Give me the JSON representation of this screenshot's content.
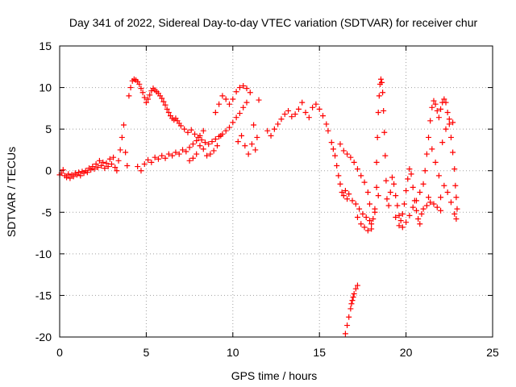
{
  "chart_data": {
    "type": "scatter",
    "title": "Day 341 of 2022, Sidereal Day-to-day VTEC variation (SDTVAR) for receiver chur",
    "xlabel": "GPS time / hours",
    "ylabel": "SDTVAR / TECUs",
    "xlim": [
      0,
      25
    ],
    "ylim": [
      -20,
      15
    ],
    "x_ticks": [
      0,
      5,
      10,
      15,
      20,
      25
    ],
    "y_ticks": [
      -20,
      -15,
      -10,
      -5,
      0,
      5,
      10,
      15
    ],
    "x_tick_labels": [
      "0",
      "5",
      "10",
      "15",
      "20",
      "25"
    ],
    "y_tick_labels": [
      "-20",
      "-15",
      "-10",
      "-5",
      "0",
      "5",
      "10",
      "15"
    ],
    "grid": true,
    "marker": "+",
    "series": [
      {
        "name": "SDTVAR",
        "color": "#ff0000",
        "points": [
          [
            0.0,
            -0.5
          ],
          [
            0.1,
            -0.3
          ],
          [
            0.2,
            0.1
          ],
          [
            0.3,
            -0.6
          ],
          [
            0.4,
            -0.8
          ],
          [
            0.5,
            -0.4
          ],
          [
            0.6,
            -0.9
          ],
          [
            0.7,
            -0.5
          ],
          [
            0.8,
            -0.7
          ],
          [
            0.9,
            -0.3
          ],
          [
            1.0,
            -0.5
          ],
          [
            1.1,
            -0.2
          ],
          [
            1.2,
            -0.6
          ],
          [
            1.3,
            -0.1
          ],
          [
            1.4,
            -0.3
          ],
          [
            1.5,
            0.0
          ],
          [
            1.6,
            -0.2
          ],
          [
            1.7,
            0.3
          ],
          [
            1.8,
            0.1
          ],
          [
            1.9,
            0.5
          ],
          [
            2.0,
            0.2
          ],
          [
            2.1,
            0.8
          ],
          [
            2.2,
            0.4
          ],
          [
            2.3,
            1.2
          ],
          [
            2.4,
            0.6
          ],
          [
            2.5,
            1.0
          ],
          [
            2.6,
            0.3
          ],
          [
            2.7,
            0.9
          ],
          [
            2.8,
            0.5
          ],
          [
            2.9,
            1.4
          ],
          [
            3.0,
            0.8
          ],
          [
            3.1,
            1.6
          ],
          [
            3.2,
            0.4
          ],
          [
            3.3,
            0.0
          ],
          [
            3.4,
            1.2
          ],
          [
            3.5,
            2.5
          ],
          [
            3.6,
            4.0
          ],
          [
            3.7,
            5.5
          ],
          [
            3.8,
            2.2
          ],
          [
            3.9,
            0.6
          ],
          [
            4.0,
            9.0
          ],
          [
            4.1,
            10.0
          ],
          [
            4.2,
            10.8
          ],
          [
            4.3,
            11.0
          ],
          [
            4.4,
            10.9
          ],
          [
            4.5,
            10.7
          ],
          [
            4.6,
            10.4
          ],
          [
            4.7,
            9.9
          ],
          [
            4.8,
            9.4
          ],
          [
            4.9,
            8.8
          ],
          [
            5.0,
            8.2
          ],
          [
            5.1,
            8.6
          ],
          [
            5.2,
            9.1
          ],
          [
            5.3,
            9.6
          ],
          [
            5.4,
            9.9
          ],
          [
            5.5,
            9.7
          ],
          [
            5.6,
            9.5
          ],
          [
            5.7,
            9.3
          ],
          [
            5.8,
            9.0
          ],
          [
            5.9,
            8.7
          ],
          [
            6.0,
            8.3
          ],
          [
            6.1,
            7.9
          ],
          [
            6.2,
            7.4
          ],
          [
            6.3,
            7.0
          ],
          [
            6.4,
            6.6
          ],
          [
            6.5,
            6.3
          ],
          [
            6.6,
            6.1
          ],
          [
            6.7,
            6.3
          ],
          [
            6.8,
            6.0
          ],
          [
            6.9,
            5.7
          ],
          [
            4.5,
            0.5
          ],
          [
            4.7,
            0.0
          ],
          [
            4.9,
            0.8
          ],
          [
            5.1,
            1.3
          ],
          [
            5.3,
            1.0
          ],
          [
            5.5,
            1.6
          ],
          [
            5.7,
            1.4
          ],
          [
            5.9,
            1.8
          ],
          [
            6.1,
            1.5
          ],
          [
            6.3,
            2.0
          ],
          [
            6.5,
            1.8
          ],
          [
            6.7,
            2.2
          ],
          [
            6.9,
            2.0
          ],
          [
            7.1,
            2.5
          ],
          [
            7.3,
            2.3
          ],
          [
            7.5,
            2.8
          ],
          [
            7.7,
            3.2
          ],
          [
            7.9,
            3.6
          ],
          [
            8.1,
            4.2
          ],
          [
            8.3,
            4.8
          ],
          [
            7.0,
            5.4
          ],
          [
            7.2,
            5.0
          ],
          [
            7.4,
            4.6
          ],
          [
            7.6,
            4.9
          ],
          [
            7.8,
            4.4
          ],
          [
            8.0,
            4.0
          ],
          [
            8.2,
            3.7
          ],
          [
            8.4,
            3.4
          ],
          [
            8.6,
            3.2
          ],
          [
            8.8,
            3.5
          ],
          [
            9.0,
            3.8
          ],
          [
            9.2,
            4.1
          ],
          [
            9.4,
            4.4
          ],
          [
            9.6,
            4.8
          ],
          [
            9.8,
            5.2
          ],
          [
            10.0,
            5.8
          ],
          [
            10.2,
            6.4
          ],
          [
            10.4,
            6.9
          ],
          [
            10.6,
            7.6
          ],
          [
            10.8,
            8.2
          ],
          [
            9.0,
            7.0
          ],
          [
            9.2,
            8.0
          ],
          [
            9.4,
            9.0
          ],
          [
            9.6,
            8.6
          ],
          [
            9.8,
            8.0
          ],
          [
            10.0,
            8.6
          ],
          [
            10.2,
            9.5
          ],
          [
            10.4,
            10.0
          ],
          [
            10.6,
            10.2
          ],
          [
            10.8,
            9.9
          ],
          [
            11.0,
            9.4
          ],
          [
            11.2,
            5.5
          ],
          [
            11.4,
            4.0
          ],
          [
            11.5,
            8.5
          ],
          [
            11.3,
            2.5
          ],
          [
            11.1,
            3.2
          ],
          [
            10.9,
            2.0
          ],
          [
            10.7,
            3.0
          ],
          [
            10.5,
            4.2
          ],
          [
            10.3,
            3.5
          ],
          [
            9.3,
            4.2
          ],
          [
            9.1,
            3.0
          ],
          [
            8.9,
            2.4
          ],
          [
            8.7,
            2.0
          ],
          [
            8.5,
            1.8
          ],
          [
            8.3,
            2.6
          ],
          [
            8.1,
            3.0
          ],
          [
            7.9,
            2.0
          ],
          [
            7.7,
            1.5
          ],
          [
            7.5,
            1.2
          ],
          [
            12.0,
            4.8
          ],
          [
            12.2,
            4.2
          ],
          [
            12.4,
            5.0
          ],
          [
            12.6,
            5.6
          ],
          [
            12.8,
            6.2
          ],
          [
            13.0,
            6.8
          ],
          [
            13.2,
            7.2
          ],
          [
            13.4,
            6.5
          ],
          [
            13.6,
            6.8
          ],
          [
            13.8,
            7.4
          ],
          [
            14.0,
            8.2
          ],
          [
            14.2,
            7.0
          ],
          [
            14.4,
            6.4
          ],
          [
            14.6,
            7.6
          ],
          [
            14.8,
            8.0
          ],
          [
            15.0,
            7.4
          ],
          [
            15.2,
            6.6
          ],
          [
            15.4,
            5.6
          ],
          [
            15.5,
            4.8
          ],
          [
            15.7,
            3.4
          ],
          [
            15.8,
            2.6
          ],
          [
            15.9,
            1.8
          ],
          [
            16.0,
            0.6
          ],
          [
            16.1,
            -0.6
          ],
          [
            16.2,
            -1.6
          ],
          [
            16.3,
            -2.6
          ],
          [
            16.4,
            -3.0
          ],
          [
            16.5,
            -2.4
          ],
          [
            16.6,
            -3.4
          ],
          [
            16.7,
            -2.8
          ],
          [
            16.2,
            3.2
          ],
          [
            16.4,
            2.4
          ],
          [
            16.6,
            2.0
          ],
          [
            16.8,
            1.6
          ],
          [
            17.0,
            1.0
          ],
          [
            17.2,
            0.2
          ],
          [
            17.4,
            -0.6
          ],
          [
            17.6,
            -1.4
          ],
          [
            17.8,
            -2.6
          ],
          [
            17.9,
            -4.0
          ],
          [
            16.9,
            -3.6
          ],
          [
            17.1,
            -4.0
          ],
          [
            17.3,
            -4.6
          ],
          [
            17.5,
            -5.2
          ],
          [
            17.7,
            -5.6
          ],
          [
            17.9,
            -6.0
          ],
          [
            18.0,
            -6.4
          ],
          [
            18.1,
            -5.8
          ],
          [
            18.2,
            -4.6
          ],
          [
            18.3,
            -2.0
          ],
          [
            17.2,
            -5.6
          ],
          [
            17.4,
            -6.4
          ],
          [
            17.6,
            -6.8
          ],
          [
            17.8,
            -7.2
          ],
          [
            18.0,
            -7.0
          ],
          [
            18.2,
            -5.0
          ],
          [
            18.4,
            -3.0
          ],
          [
            18.3,
            1.0
          ],
          [
            18.35,
            4.0
          ],
          [
            18.4,
            7.0
          ],
          [
            18.45,
            9.0
          ],
          [
            18.5,
            10.4
          ],
          [
            18.55,
            11.0
          ],
          [
            18.6,
            10.6
          ],
          [
            18.65,
            9.4
          ],
          [
            18.7,
            7.2
          ],
          [
            18.75,
            4.6
          ],
          [
            18.8,
            1.8
          ],
          [
            18.85,
            -1.2
          ],
          [
            18.9,
            -3.4
          ],
          [
            19.0,
            -4.2
          ],
          [
            19.1,
            -2.6
          ],
          [
            19.2,
            -0.8
          ],
          [
            19.3,
            -1.6
          ],
          [
            19.4,
            -3.0
          ],
          [
            19.5,
            -4.2
          ],
          [
            19.6,
            -5.4
          ],
          [
            19.7,
            -6.0
          ],
          [
            19.8,
            -5.2
          ],
          [
            19.9,
            -4.0
          ],
          [
            20.0,
            -2.4
          ],
          [
            20.1,
            -1.0
          ],
          [
            20.2,
            0.2
          ],
          [
            20.3,
            -0.4
          ],
          [
            20.4,
            -2.0
          ],
          [
            20.5,
            -3.6
          ],
          [
            20.6,
            -4.8
          ],
          [
            20.7,
            -5.8
          ],
          [
            20.8,
            -6.4
          ],
          [
            20.9,
            -5.2
          ],
          [
            19.4,
            -5.6
          ],
          [
            19.6,
            -6.6
          ],
          [
            19.8,
            -6.8
          ],
          [
            20.0,
            -6.2
          ],
          [
            20.2,
            -5.4
          ],
          [
            20.4,
            -4.4
          ],
          [
            20.6,
            -3.6
          ],
          [
            20.8,
            -2.6
          ],
          [
            21.0,
            -1.6
          ],
          [
            21.1,
            0.0
          ],
          [
            21.2,
            2.0
          ],
          [
            21.3,
            4.0
          ],
          [
            21.4,
            6.0
          ],
          [
            21.5,
            7.6
          ],
          [
            21.6,
            8.4
          ],
          [
            21.7,
            8.0
          ],
          [
            21.8,
            7.2
          ],
          [
            21.9,
            6.4
          ],
          [
            22.0,
            7.4
          ],
          [
            22.1,
            8.2
          ],
          [
            22.2,
            8.6
          ],
          [
            22.3,
            8.2
          ],
          [
            22.4,
            7.0
          ],
          [
            22.5,
            5.6
          ],
          [
            22.6,
            4.0
          ],
          [
            22.7,
            2.2
          ],
          [
            22.8,
            0.2
          ],
          [
            22.85,
            -1.8
          ],
          [
            22.9,
            -3.2
          ],
          [
            22.95,
            -4.6
          ],
          [
            21.0,
            -4.6
          ],
          [
            21.2,
            -4.2
          ],
          [
            21.4,
            -3.8
          ],
          [
            21.6,
            -4.0
          ],
          [
            21.8,
            -4.4
          ],
          [
            22.0,
            -3.2
          ],
          [
            22.2,
            -1.8
          ],
          [
            22.4,
            -2.6
          ],
          [
            22.6,
            -3.8
          ],
          [
            22.8,
            -5.2
          ],
          [
            21.5,
            2.6
          ],
          [
            21.7,
            1.0
          ],
          [
            21.9,
            -0.6
          ],
          [
            22.1,
            3.4
          ],
          [
            22.3,
            5.0
          ],
          [
            22.5,
            6.2
          ],
          [
            22.7,
            5.8
          ],
          [
            22.9,
            -5.8
          ],
          [
            22.0,
            -4.8
          ],
          [
            21.3,
            -3.2
          ],
          [
            16.5,
            -19.6
          ],
          [
            16.6,
            -18.6
          ],
          [
            16.7,
            -17.6
          ],
          [
            16.8,
            -16.6
          ],
          [
            16.9,
            -15.6
          ],
          [
            17.0,
            -14.8
          ],
          [
            17.1,
            -14.2
          ],
          [
            17.2,
            -13.8
          ],
          [
            16.85,
            -16.0
          ],
          [
            16.95,
            -15.2
          ]
        ]
      }
    ]
  }
}
